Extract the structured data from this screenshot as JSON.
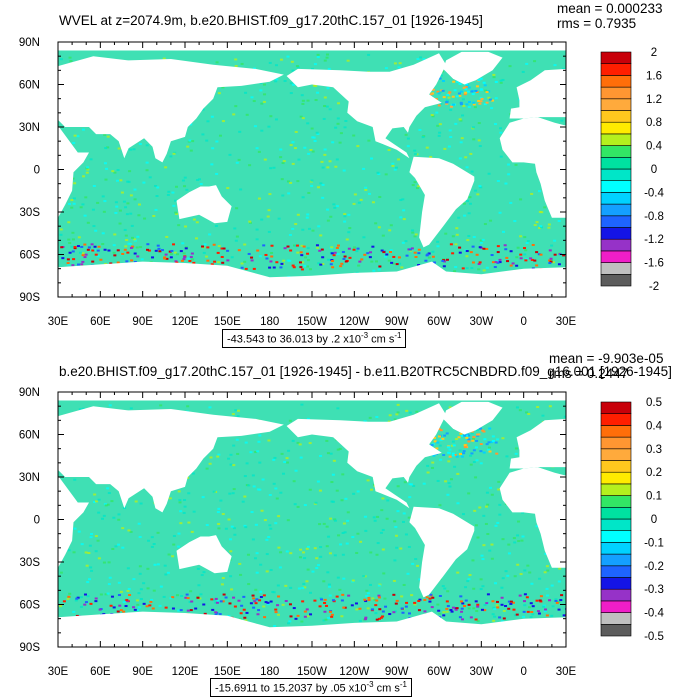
{
  "colors": {
    "ocean_fill": "#3fe0b4",
    "land": "#ffffff",
    "frame": "#000000"
  },
  "palette": [
    "#5c5c5c",
    "#bfbfbf",
    "#f01ec8",
    "#9632c8",
    "#1414e6",
    "#1e64ff",
    "#14a0ff",
    "#00d2ff",
    "#00ffff",
    "#00e6c8",
    "#00e1a0",
    "#32e664",
    "#b4f01e",
    "#ffeb00",
    "#ffc81e",
    "#ffaa3c",
    "#ff9632",
    "#ff6e0a",
    "#ff1e00",
    "#c8000a"
  ],
  "panels": [
    {
      "title": "WVEL at z=2074.9m, b.e20.BHIST.f09_g17.20thC.157_01 [1926-1945]",
      "mean_label": "mean = 0.000233",
      "rms_label": "rms = 0.7935",
      "range_text": "-43.543 to 36.013 by .2 x10",
      "range_exp": "-3",
      "range_units": " cm s",
      "range_units_exp": "-1"
    },
    {
      "title": "b.e20.BHIST.f09_g17.20thC.157_01 [1926-1945] - b.e11.B20TRC5CNBDRD.f09_g16.001 [1926-1945]",
      "mean_label": "mean = -9.903e-05",
      "rms_label": "rms = 0.2447",
      "range_text": "-15.6911 to 15.2037 by .05 x10",
      "range_exp": "-3",
      "range_units": " cm s",
      "range_units_exp": "-1"
    }
  ],
  "chart_data": [
    {
      "type": "heatmap",
      "title": "WVEL at z=2074.9m, b.e20.BHIST.f09_g17.20thC.157_01 [1926-1945]",
      "x_tick_labels": [
        "30E",
        "60E",
        "90E",
        "120E",
        "150E",
        "180",
        "150W",
        "120W",
        "90W",
        "60W",
        "30W",
        "0",
        "30E"
      ],
      "y_tick_labels": [
        "90N",
        "60N",
        "30N",
        "0",
        "30S",
        "60S",
        "90S"
      ],
      "xlim": [
        30,
        390
      ],
      "ylim": [
        -90,
        90
      ],
      "colorbar_labels": [
        "2",
        "1.6",
        "1.2",
        "0.8",
        "0.4",
        "0",
        "-0.4",
        "-0.8",
        "-1.2",
        "-1.6",
        "-2"
      ],
      "colorbar_range": [
        -2,
        2
      ],
      "mean": 0.000233,
      "rms": 0.7935,
      "data_min": -43.543,
      "data_max": 36.013,
      "contour_interval": 0.2,
      "units": "x10-3 cm s-1"
    },
    {
      "type": "heatmap",
      "title": "b.e20.BHIST.f09_g17.20thC.157_01 [1926-1945] - b.e11.B20TRC5CNBDRD.f09_g16.001 [1926-1945]",
      "x_tick_labels": [
        "30E",
        "60E",
        "90E",
        "120E",
        "150E",
        "180",
        "150W",
        "120W",
        "90W",
        "60W",
        "30W",
        "0",
        "30E"
      ],
      "y_tick_labels": [
        "90N",
        "60N",
        "30N",
        "0",
        "30S",
        "60S",
        "90S"
      ],
      "xlim": [
        30,
        390
      ],
      "ylim": [
        -90,
        90
      ],
      "colorbar_labels": [
        "0.5",
        "0.4",
        "0.3",
        "0.2",
        "0.1",
        "0",
        "-0.1",
        "-0.2",
        "-0.3",
        "-0.4",
        "-0.5"
      ],
      "colorbar_range": [
        -0.5,
        0.5
      ],
      "mean": -9.903e-05,
      "rms": 0.2447,
      "data_min": -15.6911,
      "data_max": 15.2037,
      "contour_interval": 0.05,
      "units": "x10-3 cm s-1"
    }
  ]
}
